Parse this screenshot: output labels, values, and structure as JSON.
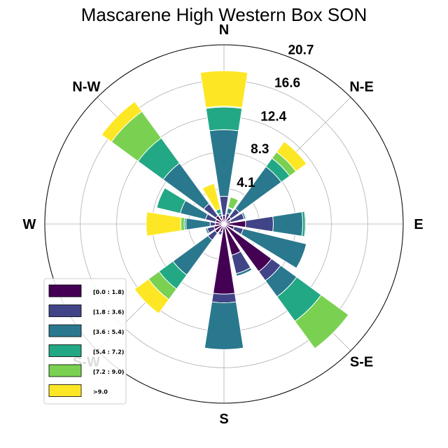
{
  "chart_data": {
    "type": "windrose",
    "title": "Mascarene High Western Box SON",
    "directions": [
      "N",
      "N-E",
      "E",
      "S-E",
      "S",
      "S-W",
      "W",
      "N-W"
    ],
    "ring_labels": [
      "4.1",
      "8.3",
      "12.4",
      "16.6",
      "20.7"
    ],
    "rmax": 20.7,
    "series": [
      {
        "name": "[0.0 : 1.8)",
        "color": "#440154"
      },
      {
        "name": "[1.8 : 3.6)",
        "color": "#414487"
      },
      {
        "name": "[3.6 : 5.4)",
        "color": "#2a788e"
      },
      {
        "name": "[5.4 : 7.2)",
        "color": "#22a884"
      },
      {
        "name": "[7.2 : 9.0)",
        "color": "#7ad151"
      },
      {
        "name": ">9.0",
        "color": "#fde725"
      }
    ],
    "sectors": [
      {
        "angle": 0,
        "values": [
          1.0,
          2.2,
          7.7,
          2.6,
          0.1,
          4.1
        ]
      },
      {
        "angle": 22.5,
        "values": [
          0.5,
          0.8,
          0.6,
          0.1,
          1.2,
          0.0
        ]
      },
      {
        "angle": 45,
        "values": [
          1.0,
          1.2,
          6.0,
          1.2,
          0.9,
          1.5
        ]
      },
      {
        "angle": 67.5,
        "values": [
          0.8,
          1.6,
          0.2,
          0.1,
          0.0,
          0.0
        ]
      },
      {
        "angle": 90,
        "values": [
          2.5,
          3.2,
          3.4,
          0.3,
          0.1,
          0.0
        ]
      },
      {
        "angle": 112.5,
        "values": [
          1.2,
          1.1,
          7.5,
          0.0,
          0.0,
          0.0
        ]
      },
      {
        "angle": 135,
        "values": [
          6.8,
          1.3,
          2.3,
          3.5,
          3.9,
          0.0
        ]
      },
      {
        "angle": 157.5,
        "values": [
          3.7,
          2.2,
          0.3,
          0.0,
          0.0,
          0.0
        ]
      },
      {
        "angle": 180,
        "values": [
          8.1,
          1.0,
          5.4,
          0.0,
          0.0,
          0.0
        ]
      },
      {
        "angle": 202.5,
        "values": [
          0.9,
          0.4,
          0.1,
          0.0,
          0.0,
          0.0
        ]
      },
      {
        "angle": 225,
        "values": [
          1.3,
          1.0,
          5.0,
          2.0,
          1.5,
          2.0
        ]
      },
      {
        "angle": 247.5,
        "values": [
          1.2,
          0.8,
          0.2,
          0.0,
          0.0,
          0.0
        ]
      },
      {
        "angle": 270,
        "values": [
          1.0,
          0.6,
          2.8,
          0.2,
          0.4,
          4.0
        ]
      },
      {
        "angle": 292.5,
        "values": [
          1.0,
          1.2,
          3.0,
          2.8,
          0.0,
          0.0
        ]
      },
      {
        "angle": 315,
        "values": [
          1.2,
          1.7,
          5.8,
          3.6,
          3.8,
          1.4
        ]
      },
      {
        "angle": 337.5,
        "values": [
          0.6,
          0.4,
          0.3,
          0.5,
          0.0,
          3.0
        ]
      }
    ]
  }
}
